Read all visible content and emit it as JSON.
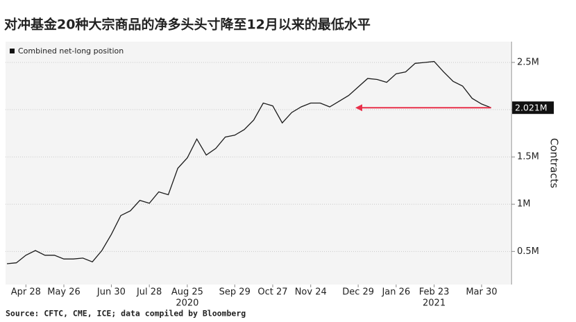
{
  "chart_data": {
    "type": "line",
    "title": "对冲基金20种大宗商品的净多头头寸降至12月以来的最低水平",
    "source": "Source: CFTC, CME, ICE; data compiled by Bloomberg",
    "y_label": "Contracts",
    "x": [
      "2020-04-14",
      "2020-04-21",
      "2020-04-28",
      "2020-05-05",
      "2020-05-12",
      "2020-05-19",
      "2020-05-26",
      "2020-06-02",
      "2020-06-09",
      "2020-06-16",
      "2020-06-23",
      "2020-06-30",
      "2020-07-07",
      "2020-07-14",
      "2020-07-21",
      "2020-07-28",
      "2020-08-04",
      "2020-08-11",
      "2020-08-18",
      "2020-08-25",
      "2020-09-01",
      "2020-09-08",
      "2020-09-15",
      "2020-09-22",
      "2020-09-29",
      "2020-10-06",
      "2020-10-13",
      "2020-10-20",
      "2020-10-27",
      "2020-11-03",
      "2020-11-10",
      "2020-11-17",
      "2020-11-24",
      "2020-12-01",
      "2020-12-08",
      "2020-12-15",
      "2020-12-22",
      "2020-12-29",
      "2021-01-05",
      "2021-01-12",
      "2021-01-19",
      "2021-01-26",
      "2021-02-02",
      "2021-02-09",
      "2021-02-16",
      "2021-02-23",
      "2021-03-02",
      "2021-03-09",
      "2021-03-16",
      "2021-03-23",
      "2021-03-30",
      "2021-04-06"
    ],
    "series": [
      {
        "name": "Combined net-long position",
        "color": "#1a1a1a",
        "values": [
          370000,
          380000,
          460000,
          510000,
          460000,
          460000,
          420000,
          420000,
          430000,
          390000,
          510000,
          680000,
          880000,
          930000,
          1040000,
          1010000,
          1130000,
          1100000,
          1380000,
          1490000,
          1690000,
          1520000,
          1590000,
          1710000,
          1730000,
          1790000,
          1890000,
          2070000,
          2040000,
          1860000,
          1970000,
          2030000,
          2070000,
          2070000,
          2030000,
          2090000,
          2150000,
          2240000,
          2330000,
          2320000,
          2290000,
          2380000,
          2400000,
          2490000,
          2500000,
          2510000,
          2400000,
          2300000,
          2250000,
          2120000,
          2060000,
          2021000
        ]
      }
    ],
    "end_label": {
      "value": 2021000,
      "label": "2.021M"
    },
    "xlim": [
      "2020-04-13",
      "2021-04-20"
    ],
    "xticks": [
      {
        "value": "2020-04-28",
        "label": "Apr 28"
      },
      {
        "value": "2020-05-26",
        "label": "May 26"
      },
      {
        "value": "2020-06-30",
        "label": "Jun 30"
      },
      {
        "value": "2020-07-28",
        "label": "Jul 28"
      },
      {
        "value": "2020-08-25",
        "label": "Aug 25"
      },
      {
        "value": "2020-09-29",
        "label": "Sep 29"
      },
      {
        "value": "2020-10-27",
        "label": "Oct 27"
      },
      {
        "value": "2020-11-24",
        "label": "Nov 24"
      },
      {
        "value": "2020-12-29",
        "label": "Dec 29"
      },
      {
        "value": "2021-01-26",
        "label": "Jan 26"
      },
      {
        "value": "2021-02-23",
        "label": "Feb 23"
      },
      {
        "value": "2021-03-30",
        "label": "Mar 30"
      }
    ],
    "xyears": [
      {
        "value": "2020-08-25",
        "label": "2020"
      },
      {
        "value": "2021-02-23",
        "label": "2021"
      }
    ],
    "ylim": [
      150000,
      2720000
    ],
    "yticks": [
      {
        "value": 500000,
        "label": "0.5M"
      },
      {
        "value": 1000000,
        "label": "1M"
      },
      {
        "value": 1500000,
        "label": "1.5M"
      },
      {
        "value": 2000000,
        "label": "2M"
      },
      {
        "value": 2500000,
        "label": "2.5M"
      }
    ],
    "grid": true
  }
}
